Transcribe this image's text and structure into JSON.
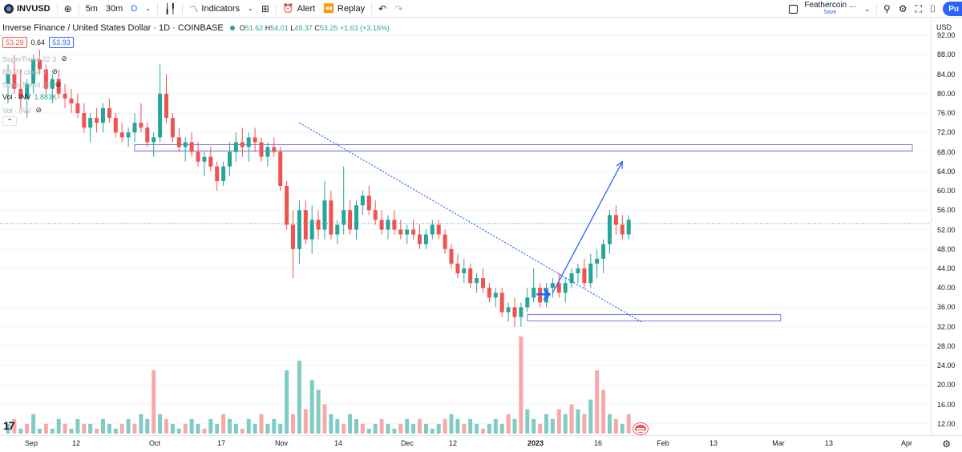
{
  "toolbar": {
    "symbol": "INVUSD",
    "add_icon": "plus-circle-icon",
    "intervals": [
      "5m",
      "30m",
      "D"
    ],
    "active_interval": "D",
    "indicators_label": "Indicators",
    "alert_label": "Alert",
    "replay_label": "Replay",
    "layout_name": "Feathercoin ...",
    "layout_save": "Save",
    "publish_label": "Pu"
  },
  "legend": {
    "title": "Inverse Finance / United States Dollar · 1D · COINBASE",
    "open": "51.62",
    "high": "54.01",
    "low": "49.37",
    "close": "53.25",
    "change": "+1.63 (+3.16%)",
    "bid": "53.29",
    "spread": "0.64",
    "ask": "53.93",
    "indicators": [
      {
        "label": "SuperTrend 22 3",
        "value": ""
      },
      {
        "label": "BB 20 close 2",
        "value": ""
      },
      {
        "label": "SuperTrend 22",
        "value": ""
      },
      {
        "label": "Vol · INV",
        "value": "1.883K"
      },
      {
        "label": "Vol · INV",
        "value": ""
      }
    ]
  },
  "price_scale": {
    "currency": "USD",
    "ticks": [
      "92.00",
      "88.00",
      "84.00",
      "80.00",
      "76.00",
      "72.00",
      "68.00",
      "64.00",
      "60.00",
      "56.00",
      "52.00",
      "48.00",
      "44.00",
      "40.00",
      "36.00",
      "32.00",
      "28.00",
      "24.00",
      "20.00",
      "16.00",
      "12.00"
    ]
  },
  "time_scale": {
    "ticks": [
      {
        "label": "Sep",
        "bold": false
      },
      {
        "label": "12",
        "bold": false
      },
      {
        "label": "Oct",
        "bold": false
      },
      {
        "label": "17",
        "bold": false
      },
      {
        "label": "Nov",
        "bold": false
      },
      {
        "label": "14",
        "bold": false
      },
      {
        "label": "Dec",
        "bold": false
      },
      {
        "label": "12",
        "bold": false
      },
      {
        "label": "2023",
        "bold": true
      },
      {
        "label": "16",
        "bold": false
      },
      {
        "label": "Feb",
        "bold": false
      },
      {
        "label": "13",
        "bold": false
      },
      {
        "label": "Mar",
        "bold": false
      },
      {
        "label": "13",
        "bold": false
      },
      {
        "label": "Apr",
        "bold": false
      }
    ]
  },
  "colors": {
    "up": "#26a69a",
    "down": "#ef5350",
    "vol_up": "#80cbc4",
    "vol_down": "#f7a9a7",
    "drawing": "#2962ff",
    "zone": "#7b6cf0",
    "last_price_line": "#26a69a"
  },
  "chart_data": {
    "type": "candlestick",
    "price_range": [
      10,
      94
    ],
    "last_price": 53.25,
    "candles": [
      [
        82,
        86,
        78,
        84
      ],
      [
        84,
        88,
        80,
        81
      ],
      [
        81,
        85,
        77,
        79
      ],
      [
        79,
        83,
        75,
        82
      ],
      [
        82,
        88,
        80,
        87
      ],
      [
        87,
        89,
        84,
        85
      ],
      [
        85,
        86,
        80,
        81
      ],
      [
        81,
        84,
        78,
        83
      ],
      [
        83,
        85,
        79,
        80
      ],
      [
        80,
        82,
        77,
        79
      ],
      [
        79,
        81,
        76,
        78
      ],
      [
        78,
        80,
        75,
        76
      ],
      [
        76,
        78,
        72,
        73
      ],
      [
        73,
        76,
        70,
        75
      ],
      [
        75,
        77,
        72,
        74
      ],
      [
        74,
        78,
        72,
        77
      ],
      [
        77,
        79,
        74,
        75
      ],
      [
        75,
        76,
        71,
        72
      ],
      [
        72,
        74,
        70,
        71
      ],
      [
        71,
        73,
        69,
        72
      ],
      [
        72,
        76,
        70,
        74
      ],
      [
        74,
        78,
        72,
        73
      ],
      [
        73,
        74,
        69,
        70
      ],
      [
        70,
        72,
        67,
        71
      ],
      [
        71,
        86,
        70,
        80
      ],
      [
        80,
        84,
        74,
        75
      ],
      [
        75,
        76,
        70,
        71
      ],
      [
        71,
        73,
        68,
        69
      ],
      [
        69,
        71,
        66,
        70
      ],
      [
        70,
        72,
        67,
        68
      ],
      [
        68,
        70,
        65,
        66
      ],
      [
        66,
        68,
        63,
        67
      ],
      [
        67,
        69,
        64,
        65
      ],
      [
        65,
        66,
        60,
        62
      ],
      [
        62,
        66,
        61,
        65
      ],
      [
        65,
        70,
        63,
        68
      ],
      [
        68,
        72,
        66,
        70
      ],
      [
        70,
        73,
        67,
        69
      ],
      [
        69,
        72,
        66,
        71
      ],
      [
        71,
        73,
        68,
        70
      ],
      [
        70,
        71,
        66,
        67
      ],
      [
        67,
        70,
        65,
        69
      ],
      [
        69,
        71,
        67,
        68
      ],
      [
        68,
        69,
        60,
        61
      ],
      [
        61,
        62,
        52,
        53
      ],
      [
        53,
        56,
        42,
        48
      ],
      [
        48,
        58,
        45,
        56
      ],
      [
        56,
        58,
        49,
        50
      ],
      [
        50,
        57,
        47,
        54
      ],
      [
        54,
        56,
        50,
        52
      ],
      [
        52,
        62,
        50,
        58
      ],
      [
        58,
        60,
        50,
        51
      ],
      [
        51,
        54,
        49,
        53
      ],
      [
        53,
        65,
        51,
        56
      ],
      [
        56,
        58,
        51,
        52
      ],
      [
        52,
        58,
        50,
        57
      ],
      [
        57,
        60,
        55,
        59
      ],
      [
        59,
        61,
        55,
        56
      ],
      [
        56,
        58,
        53,
        54
      ],
      [
        54,
        56,
        51,
        52
      ],
      [
        52,
        55,
        50,
        54
      ],
      [
        54,
        56,
        51,
        52
      ],
      [
        52,
        54,
        50,
        51
      ],
      [
        51,
        53,
        49,
        52
      ],
      [
        52,
        54,
        50,
        51
      ],
      [
        51,
        53,
        48,
        49
      ],
      [
        49,
        52,
        48,
        51
      ],
      [
        51,
        54,
        50,
        53
      ],
      [
        53,
        54,
        50,
        51
      ],
      [
        51,
        52,
        47,
        48
      ],
      [
        48,
        49,
        44,
        45
      ],
      [
        45,
        47,
        42,
        43
      ],
      [
        43,
        46,
        41,
        44
      ],
      [
        44,
        45,
        40,
        41
      ],
      [
        41,
        43,
        39,
        42
      ],
      [
        42,
        44,
        39,
        40
      ],
      [
        40,
        41,
        37,
        38
      ],
      [
        38,
        40,
        36,
        39
      ],
      [
        39,
        40,
        34,
        35
      ],
      [
        35,
        37,
        33,
        36
      ],
      [
        36,
        38,
        32,
        34
      ],
      [
        34,
        37,
        32,
        36
      ],
      [
        36,
        40,
        35,
        38
      ],
      [
        38,
        44,
        37,
        40
      ],
      [
        40,
        41,
        36,
        37
      ],
      [
        37,
        41,
        36,
        40
      ],
      [
        40,
        42,
        38,
        41
      ],
      [
        41,
        43,
        38,
        39
      ],
      [
        39,
        42,
        37,
        41
      ],
      [
        41,
        44,
        40,
        43
      ],
      [
        43,
        45,
        41,
        44
      ],
      [
        44,
        46,
        40,
        41
      ],
      [
        41,
        47,
        40,
        45
      ],
      [
        45,
        48,
        42,
        46
      ],
      [
        46,
        50,
        43,
        49
      ],
      [
        49,
        56,
        47,
        55
      ],
      [
        55,
        57,
        51,
        53
      ],
      [
        53,
        55,
        50,
        51
      ],
      [
        51,
        55,
        50,
        54
      ]
    ],
    "volumes": [
      [
        12,
        1
      ],
      [
        13,
        0
      ],
      [
        11,
        1
      ],
      [
        12,
        0
      ],
      [
        14,
        1
      ],
      [
        11,
        1
      ],
      [
        12,
        0
      ],
      [
        11,
        1
      ],
      [
        13,
        1
      ],
      [
        12,
        0
      ],
      [
        11,
        1
      ],
      [
        13,
        1
      ],
      [
        12,
        0
      ],
      [
        12,
        1
      ],
      [
        11,
        0
      ],
      [
        13,
        1
      ],
      [
        12,
        1
      ],
      [
        11,
        1
      ],
      [
        12,
        0
      ],
      [
        13,
        1
      ],
      [
        12,
        0
      ],
      [
        14,
        1
      ],
      [
        13,
        1
      ],
      [
        23,
        0
      ],
      [
        14,
        1
      ],
      [
        13,
        0
      ],
      [
        12,
        1
      ],
      [
        11,
        1
      ],
      [
        12,
        0
      ],
      [
        13,
        1
      ],
      [
        12,
        1
      ],
      [
        11,
        0
      ],
      [
        13,
        1
      ],
      [
        12,
        1
      ],
      [
        14,
        0
      ],
      [
        13,
        1
      ],
      [
        12,
        1
      ],
      [
        11,
        0
      ],
      [
        13,
        1
      ],
      [
        12,
        1
      ],
      [
        14,
        0
      ],
      [
        12,
        1
      ],
      [
        13,
        1
      ],
      [
        12,
        1
      ],
      [
        23,
        1
      ],
      [
        14,
        0
      ],
      [
        25,
        1
      ],
      [
        15,
        0
      ],
      [
        21,
        1
      ],
      [
        19,
        1
      ],
      [
        16,
        0
      ],
      [
        14,
        1
      ],
      [
        13,
        1
      ],
      [
        12,
        0
      ],
      [
        14,
        1
      ],
      [
        13,
        1
      ],
      [
        12,
        0
      ],
      [
        11,
        1
      ],
      [
        12,
        1
      ],
      [
        13,
        0
      ],
      [
        12,
        1
      ],
      [
        11,
        1
      ],
      [
        12,
        0
      ],
      [
        13,
        1
      ],
      [
        12,
        1
      ],
      [
        13,
        0
      ],
      [
        12,
        1
      ],
      [
        11,
        1
      ],
      [
        12,
        1
      ],
      [
        13,
        0
      ],
      [
        14,
        1
      ],
      [
        13,
        1
      ],
      [
        12,
        0
      ],
      [
        13,
        1
      ],
      [
        12,
        1
      ],
      [
        11,
        0
      ],
      [
        12,
        1
      ],
      [
        13,
        1
      ],
      [
        12,
        1
      ],
      [
        14,
        0
      ],
      [
        13,
        1
      ],
      [
        30,
        0
      ],
      [
        15,
        1
      ],
      [
        13,
        1
      ],
      [
        12,
        0
      ],
      [
        14,
        1
      ],
      [
        13,
        1
      ],
      [
        15,
        0
      ],
      [
        14,
        1
      ],
      [
        16,
        0
      ],
      [
        15,
        1
      ],
      [
        14,
        0
      ],
      [
        17,
        1
      ],
      [
        23,
        0
      ],
      [
        19,
        0
      ],
      [
        14,
        1
      ],
      [
        13,
        0
      ],
      [
        12,
        1
      ],
      [
        14,
        0
      ]
    ],
    "volume_range": [
      10,
      33
    ],
    "zones": [
      {
        "start_index": 20,
        "end_index": 200,
        "top": 69.5,
        "bottom": 68.2
      },
      {
        "start_index": 82,
        "end_index": 122,
        "top": 34.5,
        "bottom": 33.2
      }
    ],
    "trendline": {
      "start_index": 46,
      "start_price": 74,
      "end_index": 100,
      "end_price": 33
    },
    "arrow": {
      "start_index": 86,
      "start_price": 39,
      "end_index": 97,
      "end_price": 66
    }
  }
}
